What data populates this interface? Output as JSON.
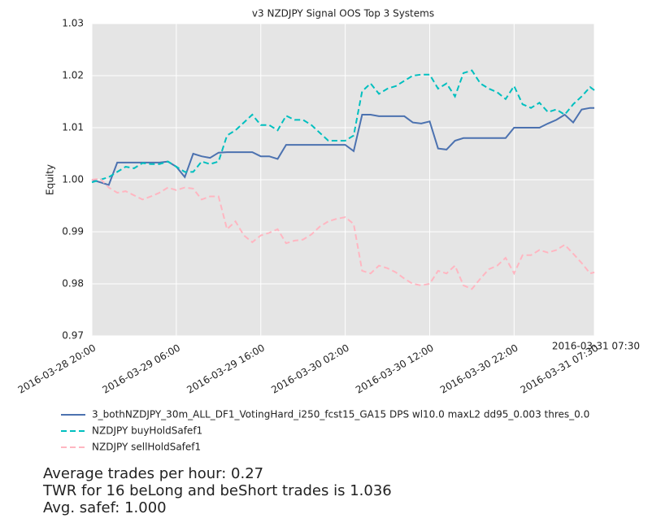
{
  "chart_data": {
    "type": "line",
    "title": "v3 NZDJPY Signal OOS Top 3 Systems",
    "y_label": "Equity",
    "x": [
      "2016-03-28 20:00",
      "2016-03-28 21:00",
      "2016-03-28 22:00",
      "2016-03-28 23:00",
      "2016-03-29 00:00",
      "2016-03-29 01:00",
      "2016-03-29 02:00",
      "2016-03-29 03:00",
      "2016-03-29 04:00",
      "2016-03-29 05:00",
      "2016-03-29 06:00",
      "2016-03-29 07:00",
      "2016-03-29 08:00",
      "2016-03-29 09:00",
      "2016-03-29 10:00",
      "2016-03-29 11:00",
      "2016-03-29 12:00",
      "2016-03-29 13:00",
      "2016-03-29 14:00",
      "2016-03-29 15:00",
      "2016-03-29 16:00",
      "2016-03-29 17:00",
      "2016-03-29 18:00",
      "2016-03-29 19:00",
      "2016-03-29 20:00",
      "2016-03-29 21:00",
      "2016-03-29 22:00",
      "2016-03-29 23:00",
      "2016-03-30 00:00",
      "2016-03-30 01:00",
      "2016-03-30 02:00",
      "2016-03-30 03:00",
      "2016-03-30 04:00",
      "2016-03-30 05:00",
      "2016-03-30 06:00",
      "2016-03-30 07:00",
      "2016-03-30 08:00",
      "2016-03-30 09:00",
      "2016-03-30 10:00",
      "2016-03-30 11:00",
      "2016-03-30 12:00",
      "2016-03-30 13:00",
      "2016-03-30 14:00",
      "2016-03-30 15:00",
      "2016-03-30 16:00",
      "2016-03-30 17:00",
      "2016-03-30 18:00",
      "2016-03-30 19:00",
      "2016-03-30 20:00",
      "2016-03-30 21:00",
      "2016-03-30 22:00",
      "2016-03-30 23:00",
      "2016-03-31 00:00",
      "2016-03-31 01:00",
      "2016-03-31 02:00",
      "2016-03-31 03:00",
      "2016-03-31 04:00",
      "2016-03-31 05:00",
      "2016-03-31 06:00",
      "2016-03-31 07:00",
      "2016-03-31 07:30"
    ],
    "series": [
      {
        "name": "3_bothNZDJPY_30m_ALL_DF1_VotingHard_i250_fcst15_GA15 DPS wl10.0 maxL2 dd95_0.003 thres_0.0",
        "color": "#4c72b0",
        "dash": "solid",
        "values": [
          1.0,
          0.9995,
          0.999,
          1.0033,
          1.0033,
          1.0033,
          1.0033,
          1.0033,
          1.0033,
          1.0035,
          1.0025,
          1.0005,
          1.005,
          1.0045,
          1.0042,
          1.0052,
          1.0053,
          1.0053,
          1.0053,
          1.0053,
          1.0045,
          1.0045,
          1.004,
          1.0067,
          1.0067,
          1.0067,
          1.0067,
          1.0067,
          1.0067,
          1.0067,
          1.0067,
          1.0055,
          1.0125,
          1.0125,
          1.0122,
          1.0122,
          1.0122,
          1.0122,
          1.011,
          1.0108,
          1.0112,
          1.006,
          1.0058,
          1.0075,
          1.008,
          1.008,
          1.008,
          1.008,
          1.008,
          1.008,
          1.01,
          1.01,
          1.01,
          1.01,
          1.0108,
          1.0115,
          1.0125,
          1.011,
          1.0135,
          1.0138,
          1.0138
        ]
      },
      {
        "name": "NZDJPY buyHoldSafef1",
        "color": "#00bfbf",
        "dash": "dashed",
        "values": [
          0.9995,
          1.0,
          1.0005,
          1.0015,
          1.0025,
          1.0022,
          1.0032,
          1.003,
          1.003,
          1.0035,
          1.0025,
          1.0015,
          1.0015,
          1.0035,
          1.003,
          1.0035,
          1.0085,
          1.0095,
          1.011,
          1.0125,
          1.0105,
          1.0105,
          1.0095,
          1.0123,
          1.0115,
          1.0115,
          1.0105,
          1.009,
          1.0075,
          1.0075,
          1.0075,
          1.0085,
          1.017,
          1.0185,
          1.0165,
          1.0175,
          1.018,
          1.019,
          1.02,
          1.0202,
          1.0202,
          1.0175,
          1.0185,
          1.016,
          1.0205,
          1.021,
          1.0185,
          1.0175,
          1.0168,
          1.0155,
          1.018,
          1.0145,
          1.0138,
          1.0148,
          1.013,
          1.0135,
          1.0125,
          1.0145,
          1.016,
          1.0178,
          1.0172
        ]
      },
      {
        "name": "NZDJPY sellHoldSafef1",
        "color": "#ffb6c1",
        "dash": "dashed",
        "values": [
          1.0,
          1.0002,
          0.9985,
          0.9975,
          0.9978,
          0.997,
          0.9962,
          0.9968,
          0.9975,
          0.9985,
          0.998,
          0.9985,
          0.9983,
          0.9962,
          0.9968,
          0.9968,
          0.9905,
          0.992,
          0.9893,
          0.988,
          0.9893,
          0.9898,
          0.9905,
          0.9878,
          0.9883,
          0.9885,
          0.9895,
          0.991,
          0.992,
          0.9925,
          0.9928,
          0.9915,
          0.9825,
          0.982,
          0.9835,
          0.983,
          0.9822,
          0.981,
          0.98,
          0.9797,
          0.98,
          0.9825,
          0.982,
          0.9835,
          0.9797,
          0.979,
          0.981,
          0.9828,
          0.9835,
          0.985,
          0.982,
          0.9855,
          0.9855,
          0.9865,
          0.986,
          0.9865,
          0.9875,
          0.9858,
          0.984,
          0.982,
          0.9822
        ]
      }
    ],
    "xlim": [
      "2016-03-28 20:00",
      "2016-03-31 07:30"
    ],
    "xticks": [
      "2016-03-28 20:00",
      "2016-03-29 06:00",
      "2016-03-29 16:00",
      "2016-03-30 02:00",
      "2016-03-30 12:00",
      "2016-03-30 22:00",
      "2016-03-31 07:30"
    ],
    "ylim": [
      0.97,
      1.03
    ],
    "yticks": [
      0.97,
      0.98,
      0.99,
      {
        "value": 1,
        "label": "1.00"
      },
      1.01,
      1.02,
      1.03
    ],
    "grid": true,
    "legend": "below",
    "annotations": [
      "Average trades per hour: 0.27",
      "TWR for 16 beLong and beShort trades is 1.036",
      "Avg. safef: 1.000"
    ]
  }
}
